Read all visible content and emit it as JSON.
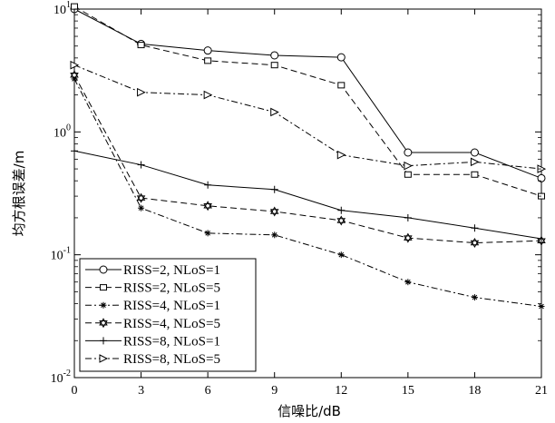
{
  "chart_data": {
    "type": "line",
    "title": "",
    "xlabel": "信噪比/dB",
    "ylabel": "均方根误差/m",
    "x": [
      0,
      3,
      6,
      9,
      12,
      15,
      18,
      21
    ],
    "x_ticks": [
      "0",
      "3",
      "6",
      "9",
      "12",
      "15",
      "18",
      "21"
    ],
    "xlim": [
      0,
      21
    ],
    "yscale": "log",
    "ylim": [
      0.01,
      10
    ],
    "y_ticks": [
      {
        "value": 0.01,
        "base": "10",
        "exp": "-2"
      },
      {
        "value": 0.1,
        "base": "10",
        "exp": "-1"
      },
      {
        "value": 1,
        "base": "10",
        "exp": "0"
      },
      {
        "value": 10,
        "base": "10",
        "exp": "1"
      }
    ],
    "grid": false,
    "legend_position": "bottom-left",
    "series": [
      {
        "name": "RISS=2, NLoS=1",
        "marker": "circle",
        "dash": "solid",
        "values": [
          10.0,
          5.2,
          4.6,
          4.2,
          4.05,
          0.68,
          0.68,
          0.42
        ]
      },
      {
        "name": "RISS=2, NLoS=5",
        "marker": "square",
        "dash": "dashed",
        "values": [
          10.5,
          5.1,
          3.8,
          3.5,
          2.4,
          0.45,
          0.45,
          0.3
        ]
      },
      {
        "name": "RISS=4, NLoS=1",
        "marker": "asterisk",
        "dash": "dashdot",
        "values": [
          2.7,
          0.24,
          0.15,
          0.145,
          0.1,
          0.06,
          0.045,
          0.038
        ]
      },
      {
        "name": "RISS=4, NLoS=5",
        "marker": "star",
        "dash": "dashed",
        "values": [
          2.9,
          0.29,
          0.25,
          0.225,
          0.19,
          0.137,
          0.125,
          0.13
        ]
      },
      {
        "name": "RISS=8, NLoS=1",
        "marker": "plus",
        "dash": "solid",
        "values": [
          0.7,
          0.54,
          0.37,
          0.34,
          0.23,
          0.2,
          0.165,
          0.135
        ]
      },
      {
        "name": "RISS=8, NLoS=5",
        "marker": "triangle-right",
        "dash": "dashdot",
        "values": [
          3.5,
          2.1,
          2.0,
          1.45,
          0.65,
          0.53,
          0.57,
          0.5
        ]
      }
    ]
  }
}
